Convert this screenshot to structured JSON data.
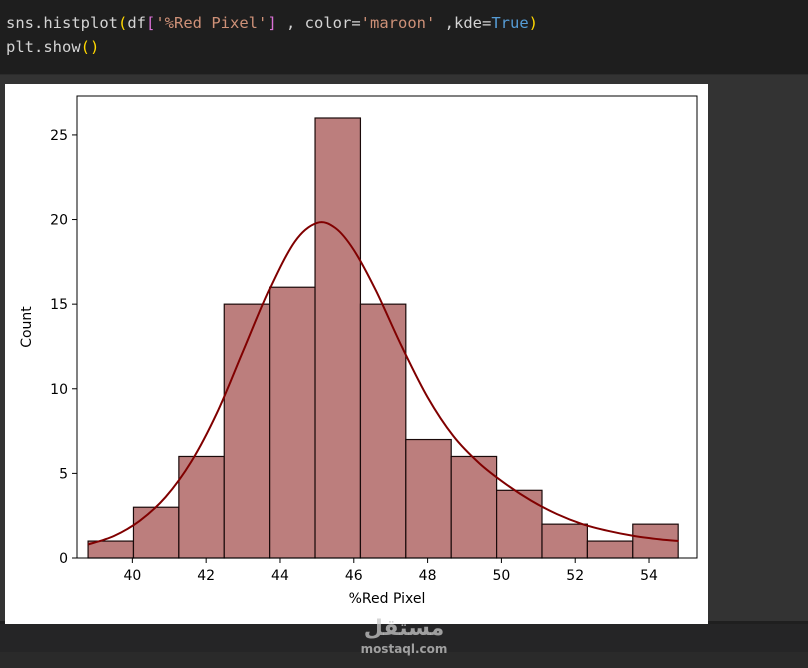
{
  "code": {
    "line1": {
      "fn": "sns.histplot",
      "open": "(",
      "arg_df": "df",
      "br_open": "[",
      "col_str": "'%Red Pixel'",
      "br_close": "]",
      "mid": " , color=",
      "color_str": "'maroon'",
      "kde_label": " ,kde=",
      "kde_val": "True",
      "close": ")"
    },
    "line2": {
      "fn": "plt.show",
      "parens": "()"
    }
  },
  "colors": {
    "bar_fill": "#bc7e7d",
    "bar_edge": "#1a0a0a",
    "kde_line": "#800000",
    "axis": "#000000"
  },
  "chart_data": {
    "type": "bar",
    "xlabel": "%Red Pixel",
    "ylabel": "Count",
    "xlim": [
      38.5,
      55.3
    ],
    "ylim": [
      0,
      27.3
    ],
    "xticks": [
      40,
      42,
      44,
      46,
      48,
      50,
      52,
      54
    ],
    "yticks": [
      0,
      5,
      10,
      15,
      20,
      25
    ],
    "bin_edges": [
      38.8,
      40.03,
      41.26,
      42.49,
      43.72,
      44.95,
      46.18,
      47.41,
      48.64,
      49.87,
      51.1,
      52.33,
      53.56,
      54.79
    ],
    "values": [
      1,
      3,
      6,
      15,
      16,
      26,
      15,
      7,
      6,
      4,
      2,
      1,
      2
    ],
    "kde": {
      "x": [
        38.8,
        39.5,
        40.2,
        40.9,
        41.6,
        42.3,
        43.0,
        43.7,
        44.4,
        45.0,
        45.5,
        46.0,
        46.6,
        47.3,
        48.0,
        48.7,
        49.4,
        50.1,
        50.8,
        51.5,
        52.2,
        52.9,
        53.6,
        54.3,
        54.8
      ],
      "y": [
        0.8,
        1.3,
        2.2,
        3.6,
        5.7,
        8.6,
        12.2,
        15.8,
        18.7,
        19.8,
        19.5,
        18.2,
        15.8,
        12.5,
        9.5,
        7.2,
        5.6,
        4.4,
        3.4,
        2.6,
        2.0,
        1.6,
        1.3,
        1.1,
        1.0
      ]
    }
  }
}
